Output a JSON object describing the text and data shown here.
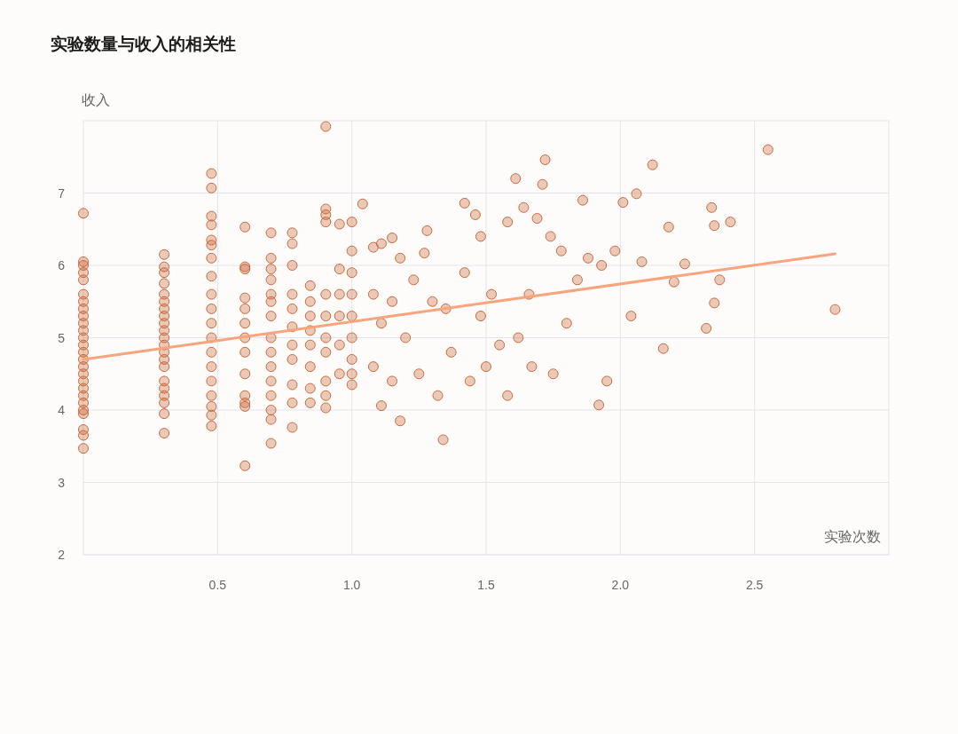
{
  "chart_data": {
    "type": "scatter",
    "title": "实验数量与收入的相关性",
    "xlabel": "实验次数",
    "ylabel": "收入",
    "xlim": [
      0,
      3
    ],
    "ylim": [
      2,
      8
    ],
    "xticks": [
      0.5,
      {
        "value": 1,
        "label": "1.0"
      },
      1.5,
      {
        "value": 2,
        "label": "2.0"
      },
      2.5
    ],
    "yticks": [
      2,
      3,
      4,
      5,
      6,
      7
    ],
    "grid": true,
    "series": [
      {
        "type": "scatter",
        "marker": "circle",
        "color": "#c96a3e",
        "x": [
          0,
          0,
          0,
          0,
          0,
          0,
          0,
          0,
          0,
          0,
          0,
          0,
          0,
          0,
          0,
          0,
          0,
          0,
          0,
          0,
          0,
          0,
          0,
          0,
          0,
          0,
          0.301,
          0.301,
          0.301,
          0.301,
          0.301,
          0.301,
          0.301,
          0.301,
          0.301,
          0.301,
          0.301,
          0.301,
          0.301,
          0.301,
          0.301,
          0.301,
          0.301,
          0.301,
          0.301,
          0.301,
          0.301,
          0.477,
          0.477,
          0.477,
          0.477,
          0.477,
          0.477,
          0.477,
          0.477,
          0.477,
          0.477,
          0.477,
          0.477,
          0.477,
          0.477,
          0.477,
          0.477,
          0.477,
          0.477,
          0.477,
          0.602,
          0.602,
          0.602,
          0.602,
          0.602,
          0.602,
          0.602,
          0.602,
          0.602,
          0.602,
          0.602,
          0.602,
          0.602,
          0.699,
          0.699,
          0.699,
          0.699,
          0.699,
          0.699,
          0.699,
          0.699,
          0.699,
          0.699,
          0.699,
          0.699,
          0.699,
          0.699,
          0.699,
          0.778,
          0.778,
          0.778,
          0.778,
          0.778,
          0.778,
          0.778,
          0.778,
          0.778,
          0.778,
          0.778,
          0.845,
          0.845,
          0.845,
          0.845,
          0.845,
          0.845,
          0.845,
          0.845,
          0.903,
          0.903,
          0.903,
          0.903,
          0.903,
          0.903,
          0.903,
          0.903,
          0.903,
          0.903,
          0.903,
          0.954,
          0.954,
          0.954,
          0.954,
          0.954,
          0.954,
          1.0,
          1.0,
          1.0,
          1.0,
          1.0,
          1.0,
          1.0,
          1.0,
          1.0,
          1.04,
          1.08,
          1.08,
          1.08,
          1.11,
          1.11,
          1.11,
          1.15,
          1.15,
          1.15,
          1.18,
          1.18,
          1.2,
          1.23,
          1.25,
          1.27,
          1.28,
          1.3,
          1.32,
          1.34,
          1.35,
          1.37,
          1.42,
          1.42,
          1.44,
          1.46,
          1.48,
          1.48,
          1.5,
          1.52,
          1.55,
          1.58,
          1.58,
          1.61,
          1.62,
          1.64,
          1.66,
          1.67,
          1.69,
          1.71,
          1.72,
          1.74,
          1.75,
          1.78,
          1.8,
          1.84,
          1.86,
          1.88,
          1.92,
          1.93,
          1.95,
          1.98,
          2.01,
          2.04,
          2.06,
          2.08,
          2.12,
          2.16,
          2.18,
          2.2,
          2.24,
          2.32,
          2.34,
          2.35,
          2.35,
          2.37,
          2.41,
          2.55,
          2.8
        ],
        "values": [
          6.72,
          6.05,
          6.0,
          5.9,
          5.8,
          5.6,
          5.5,
          5.4,
          5.3,
          5.2,
          5.1,
          5.0,
          4.9,
          4.8,
          4.7,
          4.6,
          4.5,
          4.4,
          4.3,
          4.2,
          4.1,
          4.0,
          3.95,
          3.73,
          3.65,
          3.47,
          6.15,
          5.98,
          5.9,
          5.75,
          5.6,
          5.5,
          5.4,
          5.3,
          5.2,
          5.1,
          5.0,
          4.9,
          4.8,
          4.7,
          4.6,
          4.4,
          4.3,
          4.2,
          4.1,
          3.95,
          3.68,
          7.27,
          7.07,
          6.68,
          6.56,
          6.35,
          6.28,
          6.1,
          5.85,
          5.6,
          5.4,
          5.2,
          5.0,
          4.8,
          4.6,
          4.4,
          4.2,
          4.05,
          3.93,
          3.78,
          6.53,
          5.98,
          5.95,
          5.55,
          5.4,
          5.2,
          5.0,
          4.8,
          4.5,
          4.2,
          4.1,
          4.05,
          3.23,
          6.45,
          6.1,
          5.95,
          5.8,
          5.6,
          5.5,
          5.3,
          5.0,
          4.8,
          4.6,
          4.4,
          4.2,
          4.0,
          3.87,
          3.54,
          6.45,
          6.3,
          6.0,
          5.6,
          5.4,
          5.15,
          4.9,
          4.7,
          4.35,
          4.1,
          3.76,
          5.72,
          5.5,
          5.3,
          5.1,
          4.9,
          4.6,
          4.3,
          4.1,
          7.92,
          6.78,
          6.7,
          6.6,
          5.6,
          5.3,
          5.0,
          4.8,
          4.4,
          4.2,
          4.03,
          6.57,
          5.95,
          5.6,
          5.3,
          4.9,
          4.5,
          6.6,
          6.2,
          5.9,
          5.6,
          5.3,
          5.0,
          4.7,
          4.5,
          4.35,
          6.85,
          6.25,
          5.6,
          4.6,
          6.3,
          5.2,
          4.06,
          6.38,
          5.5,
          4.4,
          6.1,
          3.85,
          5.0,
          5.8,
          4.5,
          6.17,
          6.48,
          5.5,
          4.2,
          3.59,
          5.4,
          4.8,
          6.86,
          5.9,
          4.4,
          6.7,
          6.4,
          5.3,
          4.6,
          5.6,
          4.9,
          6.6,
          4.2,
          7.2,
          5.0,
          6.8,
          5.6,
          4.6,
          6.65,
          7.12,
          7.46,
          6.4,
          4.5,
          6.2,
          5.2,
          5.8,
          6.9,
          6.1,
          4.07,
          6.0,
          4.4,
          6.2,
          6.87,
          5.3,
          6.99,
          6.05,
          7.39,
          4.85,
          6.53,
          5.77,
          6.02,
          5.13,
          6.8,
          6.55,
          5.48,
          5.8,
          6.6,
          7.6,
          5.39
        ]
      },
      {
        "type": "line",
        "marker": "none",
        "color": "#f9a47c",
        "x": [
          0,
          2.8
        ],
        "values": [
          4.7,
          6.16
        ]
      }
    ]
  }
}
